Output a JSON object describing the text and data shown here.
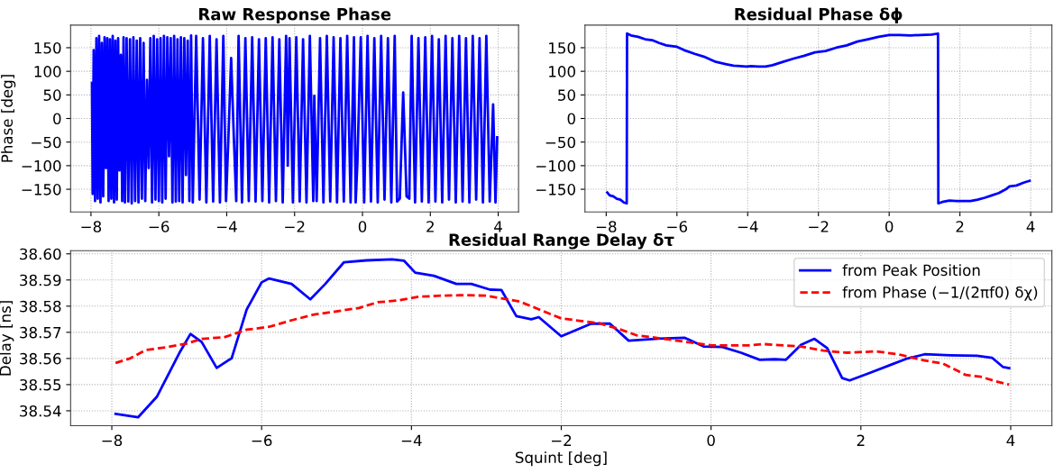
{
  "chart_data": [
    {
      "type": "line",
      "title": "Raw Response Phase",
      "ylabel": "Phase [deg]",
      "series": [
        {
          "color": "#0000ff",
          "x": [
            -7.97,
            -7.95,
            -7.92,
            -7.88,
            -7.84,
            -7.8,
            -7.76,
            -7.72,
            -7.68,
            -7.64,
            -7.6,
            -7.56,
            -7.52,
            -7.48,
            -7.44,
            -7.4,
            -7.36,
            -7.32,
            -7.28,
            -7.24,
            -7.2,
            -7.16,
            -7.12,
            -7.08,
            -7.04,
            -7.0,
            -6.95,
            -6.9,
            -6.85,
            -6.8,
            -6.75,
            -6.7,
            -6.65,
            -6.6,
            -6.55,
            -6.5,
            -6.45,
            -6.4,
            -6.35,
            -6.3,
            -6.25,
            -6.2,
            -6.15,
            -6.1,
            -6.05,
            -6.0,
            -5.95,
            -5.9,
            -5.85,
            -5.8,
            -5.75,
            -5.7,
            -5.65,
            -5.6,
            -5.55,
            -5.5,
            -5.45,
            -5.4,
            -5.35,
            -5.3,
            -5.25,
            -5.2,
            -5.15,
            -5.1,
            -5.05,
            -5.0,
            -4.9,
            -4.8,
            -4.7,
            -4.6,
            -4.5,
            -4.4,
            -4.3,
            -4.2,
            -4.1,
            -4.02,
            -3.95,
            -3.87,
            -3.79,
            -3.72,
            -3.65,
            -3.55,
            -3.45,
            -3.35,
            -3.25,
            -3.15,
            -3.05,
            -2.95,
            -2.85,
            -2.75,
            -2.65,
            -2.55,
            -2.45,
            -2.35,
            -2.25,
            -2.2,
            -2.15,
            -2.05,
            -1.95,
            -1.85,
            -1.75,
            -1.65,
            -1.55,
            -1.45,
            -1.42,
            -1.35,
            -1.25,
            -1.15,
            -1.05,
            -0.95,
            -0.85,
            -0.75,
            -0.65,
            -0.55,
            -0.45,
            -0.35,
            -0.25,
            -0.2,
            -0.15,
            -0.05,
            0.05,
            0.15,
            0.25,
            0.35,
            0.45,
            0.55,
            0.65,
            0.75,
            0.85,
            0.95,
            1.02,
            1.1,
            1.2,
            1.3,
            1.38,
            1.45,
            1.55,
            1.65,
            1.75,
            1.85,
            1.95,
            2.05,
            2.15,
            2.25,
            2.35,
            2.45,
            2.55,
            2.65,
            2.75,
            2.85,
            2.95,
            3.05,
            3.15,
            3.25,
            3.35,
            3.45,
            3.55,
            3.65,
            3.75,
            3.85,
            3.92,
            3.97
          ],
          "values": [
            75,
            -160,
            145,
            -175,
            170,
            -170,
            175,
            -178,
            160,
            -165,
            172,
            -105,
            170,
            -175,
            168,
            -170,
            175,
            -178,
            165,
            -172,
            170,
            -110,
            135,
            -175,
            172,
            -178,
            170,
            -176,
            168,
            -180,
            172,
            -175,
            165,
            -178,
            170,
            -170,
            160,
            -175,
            82,
            -105,
            170,
            -178,
            175,
            -172,
            168,
            -175,
            170,
            -178,
            175,
            -170,
            172,
            -80,
            170,
            -178,
            175,
            -176,
            168,
            -175,
            172,
            -178,
            170,
            -120,
            165,
            -175,
            176,
            -178,
            175,
            -172,
            170,
            -178,
            175,
            -176,
            168,
            -178,
            175,
            -175,
            -40,
            128,
            -40,
            -175,
            175,
            -178,
            170,
            -175,
            172,
            -176,
            168,
            -175,
            170,
            -178,
            172,
            -175,
            168,
            -178,
            175,
            -100,
            170,
            -178,
            172,
            -176,
            168,
            -178,
            175,
            -175,
            48,
            -175,
            170,
            -178,
            175,
            -176,
            172,
            -178,
            170,
            -176,
            175,
            -178,
            172,
            -178,
            -95,
            172,
            -178,
            175,
            -176,
            170,
            -178,
            175,
            -172,
            170,
            -178,
            175,
            -176,
            -170,
            55,
            -165,
            -170,
            175,
            -178,
            170,
            -176,
            172,
            -178,
            175,
            -176,
            168,
            -178,
            175,
            -172,
            170,
            -178,
            175,
            -176,
            170,
            -178,
            175,
            -172,
            170,
            -178,
            175,
            -176,
            30,
            -178,
            -40
          ]
        }
      ],
      "xlim": [
        -8.6,
        4.6
      ],
      "ylim": [
        -198,
        198
      ],
      "xticks": [
        -8,
        -6,
        -4,
        -2,
        0,
        2,
        4
      ],
      "yticks": [
        -150,
        -100,
        -50,
        0,
        50,
        100,
        150
      ],
      "grid": true
    },
    {
      "type": "line",
      "title": "Residual Phase δϕ",
      "series": [
        {
          "color": "#0000ff",
          "x": [
            -7.97,
            -7.9,
            -7.8,
            -7.7,
            -7.6,
            -7.5,
            -7.42,
            -7.41,
            -7.3,
            -7.1,
            -6.9,
            -6.7,
            -6.5,
            -6.3,
            -6.0,
            -5.8,
            -5.5,
            -5.2,
            -4.9,
            -4.6,
            -4.4,
            -4.2,
            -4.05,
            -3.9,
            -3.7,
            -3.5,
            -3.3,
            -3.0,
            -2.7,
            -2.4,
            -2.1,
            -1.8,
            -1.5,
            -1.2,
            -0.9,
            -0.6,
            -0.3,
            0,
            0.3,
            0.6,
            0.9,
            1.2,
            1.38,
            1.39,
            1.5,
            1.7,
            1.9,
            2.1,
            2.3,
            2.5,
            2.7,
            2.9,
            3.1,
            3.3,
            3.4,
            3.6,
            3.8,
            3.97
          ],
          "values": [
            -157,
            -163,
            -165,
            -170,
            -172,
            -178,
            -180,
            180,
            176,
            173,
            168,
            166,
            160,
            155,
            152,
            145,
            137,
            130,
            120,
            115,
            112,
            111,
            110,
            111,
            110,
            110,
            113,
            120,
            127,
            133,
            140,
            143,
            150,
            155,
            163,
            168,
            173,
            177,
            177,
            176,
            177,
            178,
            180,
            -180,
            -177,
            -174,
            -175,
            -175,
            -175,
            -172,
            -168,
            -163,
            -158,
            -150,
            -144,
            -142,
            -136,
            -132
          ]
        }
      ],
      "xlim": [
        -8.6,
        4.6
      ],
      "ylim": [
        -198,
        198
      ],
      "xticks": [
        -8,
        -6,
        -4,
        -2,
        0,
        2,
        4
      ],
      "yticks": [
        -150,
        -100,
        -50,
        0,
        50,
        100,
        150
      ],
      "grid": true
    },
    {
      "type": "line",
      "title": "Residual Range Delay δτ",
      "xlabel": "Squint [deg]",
      "ylabel": "Delay [ns]",
      "series": [
        {
          "name": "from Peak Position",
          "color": "#0000ff",
          "line_style": "solid",
          "x": [
            -7.95,
            -7.65,
            -7.4,
            -7.1,
            -6.95,
            -6.8,
            -6.6,
            -6.4,
            -6.2,
            -6.0,
            -5.9,
            -5.6,
            -5.35,
            -5.15,
            -4.9,
            -4.6,
            -4.26,
            -4.1,
            -3.95,
            -3.7,
            -3.4,
            -3.2,
            -2.95,
            -2.8,
            -2.6,
            -2.4,
            -2.3,
            -2.0,
            -1.6,
            -1.35,
            -1.1,
            -0.7,
            -0.35,
            -0.1,
            0.15,
            0.4,
            0.65,
            0.85,
            1.0,
            1.2,
            1.38,
            1.55,
            1.75,
            1.85,
            2.1,
            2.4,
            2.6,
            2.85,
            3.2,
            3.55,
            3.75,
            3.9,
            3.98
          ],
          "values": [
            38.5388,
            38.5375,
            38.5453,
            38.562,
            38.5694,
            38.5663,
            38.5564,
            38.5601,
            38.5787,
            38.5891,
            38.5906,
            38.5885,
            38.5826,
            38.5885,
            38.5968,
            38.5975,
            38.5979,
            38.5974,
            38.5928,
            38.5916,
            38.5885,
            38.5885,
            38.5863,
            38.5862,
            38.5762,
            38.575,
            38.5758,
            38.5685,
            38.5733,
            38.5733,
            38.5668,
            38.5676,
            38.5679,
            38.5646,
            38.5644,
            38.5622,
            38.5595,
            38.5597,
            38.5595,
            38.5652,
            38.5675,
            38.564,
            38.5525,
            38.5516,
            38.5543,
            38.5576,
            38.5598,
            38.5616,
            38.5612,
            38.561,
            38.5603,
            38.5567,
            38.5563
          ]
        },
        {
          "name": "from Phase (−1/(2πf0) δχ)",
          "color": "#ff0000",
          "line_style": "dashed",
          "x": [
            -7.95,
            -7.75,
            -7.55,
            -7.25,
            -7.0,
            -6.8,
            -6.5,
            -6.2,
            -5.9,
            -5.6,
            -5.3,
            -5.0,
            -4.7,
            -4.45,
            -4.2,
            -3.9,
            -3.6,
            -3.3,
            -3.0,
            -2.8,
            -2.55,
            -2.0,
            -1.5,
            -1.2,
            -1.0,
            -0.5,
            0,
            0.5,
            0.7,
            1.2,
            1.5,
            1.8,
            2.2,
            2.5,
            2.8,
            3.1,
            3.4,
            3.6,
            3.8,
            3.98
          ],
          "values": [
            38.5583,
            38.5601,
            38.5632,
            38.5644,
            38.5657,
            38.5675,
            38.5681,
            38.571,
            38.5721,
            38.5746,
            38.5768,
            38.578,
            38.5793,
            38.5815,
            38.5821,
            38.5836,
            38.584,
            38.5842,
            38.584,
            38.583,
            38.5817,
            38.5753,
            38.5735,
            38.571,
            38.5689,
            38.567,
            38.565,
            38.565,
            38.5655,
            38.5646,
            38.563,
            38.5622,
            38.5627,
            38.5616,
            38.5595,
            38.558,
            38.5537,
            38.553,
            38.5513,
            38.55
          ]
        }
      ],
      "xlim": [
        -8.55,
        4.55
      ],
      "ylim": [
        38.5343,
        38.6012
      ],
      "xticks": [
        -8,
        -6,
        -4,
        -2,
        0,
        2,
        4
      ],
      "yticks": [
        38.54,
        38.55,
        38.56,
        38.57,
        38.58,
        38.59,
        {
          "value": 38.6,
          "label": "38.60"
        }
      ],
      "grid": true,
      "legend": "top right"
    }
  ]
}
